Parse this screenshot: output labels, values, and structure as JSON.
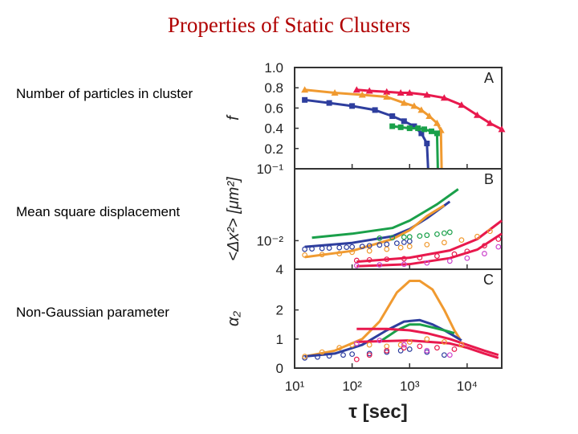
{
  "slide": {
    "title": "Properties of Static Clusters",
    "captions": [
      "Number of particles in cluster",
      "Mean square displacement",
      "Non-Gaussian parameter"
    ]
  },
  "chart_data": [
    {
      "panel": "A",
      "type": "line",
      "ylabel": "f",
      "xscale": "log",
      "xlim": [
        10,
        40000
      ],
      "ylim": [
        0,
        1.0
      ],
      "yticks": [
        "1.0",
        "0.8",
        "0.6",
        "0.4",
        "0.2"
      ],
      "yticks_values": [
        1.0,
        0.8,
        0.6,
        0.4,
        0.2
      ],
      "series": [
        {
          "color": "#e8194d",
          "marker": "triangle",
          "x": [
            120,
            200,
            400,
            700,
            1000,
            2000,
            4000,
            8000,
            15000,
            25000,
            40000
          ],
          "y": [
            0.78,
            0.77,
            0.76,
            0.75,
            0.75,
            0.73,
            0.7,
            0.63,
            0.53,
            0.45,
            0.39
          ]
        },
        {
          "color": "#f09a30",
          "marker": "triangle",
          "x": [
            15,
            50,
            150,
            400,
            800,
            1200,
            1600,
            2200,
            3000,
            3500,
            3600
          ],
          "y": [
            0.78,
            0.75,
            0.73,
            0.71,
            0.65,
            0.62,
            0.58,
            0.52,
            0.45,
            0.38,
            0.0
          ]
        },
        {
          "color": "#2e3e9e",
          "marker": "square",
          "x": [
            15,
            40,
            100,
            250,
            500,
            800,
            1200,
            1600,
            2000,
            2100
          ],
          "y": [
            0.68,
            0.65,
            0.62,
            0.58,
            0.52,
            0.47,
            0.42,
            0.35,
            0.25,
            0.0
          ]
        },
        {
          "color": "#1aa04a",
          "marker": "square",
          "x": [
            500,
            700,
            1000,
            1400,
            1800,
            2400,
            3000,
            3100
          ],
          "y": [
            0.42,
            0.41,
            0.4,
            0.4,
            0.39,
            0.37,
            0.35,
            0.0
          ]
        }
      ]
    },
    {
      "panel": "B",
      "type": "line",
      "ylabel": "<Δx²> [μm²]",
      "xscale": "log",
      "yscale": "log",
      "xlim": [
        10,
        40000
      ],
      "ylim": [
        0.004,
        0.1
      ],
      "yticks": [
        "10⁻¹",
        "10⁻²",
        "4"
      ],
      "yticks_values": [
        0.1,
        0.01,
        0.004
      ],
      "series": [
        {
          "color": "#2e3e9e",
          "style": "line",
          "x": [
            15,
            100,
            500,
            1000,
            2000,
            5000
          ],
          "y": [
            0.0082,
            0.0093,
            0.0115,
            0.0145,
            0.0205,
            0.035
          ]
        },
        {
          "color": "#1aa04a",
          "style": "line",
          "x": [
            20,
            100,
            500,
            1000,
            3000,
            7000
          ],
          "y": [
            0.011,
            0.0125,
            0.015,
            0.019,
            0.032,
            0.052
          ]
        },
        {
          "color": "#f09a30",
          "style": "line",
          "x": [
            15,
            100,
            500,
            1000,
            2000,
            4000
          ],
          "y": [
            0.0059,
            0.0072,
            0.0105,
            0.014,
            0.022,
            0.031
          ]
        },
        {
          "color": "#e8194d",
          "style": "line",
          "x": [
            120,
            1000,
            5000,
            15000,
            40000
          ],
          "y": [
            0.0051,
            0.0058,
            0.0073,
            0.0105,
            0.019
          ]
        },
        {
          "color": "#e8194d",
          "style": "line",
          "x": [
            120,
            1000,
            5000,
            15000,
            40000
          ],
          "y": [
            0.0044,
            0.0047,
            0.0057,
            0.0075,
            0.0125
          ]
        },
        {
          "color": "#2e3e9e",
          "style": "circles",
          "x": [
            15,
            20,
            30,
            40,
            60,
            80,
            100,
            150,
            200,
            300,
            400,
            600,
            800,
            1000
          ],
          "y": [
            0.0076,
            0.0077,
            0.0078,
            0.0079,
            0.008,
            0.0081,
            0.0082,
            0.0083,
            0.0085,
            0.0087,
            0.0089,
            0.0092,
            0.0095,
            0.0098
          ]
        },
        {
          "color": "#1aa04a",
          "style": "circles",
          "x": [
            300,
            500,
            800,
            1000,
            1500,
            2000,
            3000,
            4000,
            5000
          ],
          "y": [
            0.0108,
            0.011,
            0.0112,
            0.0113,
            0.0116,
            0.0119,
            0.0123,
            0.0127,
            0.0131
          ]
        },
        {
          "color": "#f09a30",
          "style": "circles",
          "x": [
            15,
            30,
            60,
            100,
            200,
            400,
            700,
            1000,
            2000,
            4000,
            8000,
            15000,
            25000
          ],
          "y": [
            0.0063,
            0.0064,
            0.0066,
            0.0069,
            0.0072,
            0.0076,
            0.008,
            0.0083,
            0.0088,
            0.0094,
            0.0102,
            0.0114,
            0.0135
          ]
        },
        {
          "color": "#e8194d",
          "style": "circles",
          "x": [
            120,
            200,
            400,
            800,
            1500,
            3000,
            6000,
            10000,
            20000,
            35000
          ],
          "y": [
            0.0053,
            0.0054,
            0.0055,
            0.0056,
            0.0058,
            0.0061,
            0.0065,
            0.0071,
            0.0085,
            0.0105
          ]
        },
        {
          "color": "#cc44cc",
          "style": "circles",
          "x": [
            120,
            300,
            800,
            2000,
            5000,
            10000,
            20000,
            35000
          ],
          "y": [
            0.0045,
            0.0046,
            0.0047,
            0.0049,
            0.0052,
            0.0057,
            0.0066,
            0.0082
          ]
        }
      ]
    },
    {
      "panel": "C",
      "type": "line",
      "ylabel": "α₂",
      "xlabel": "τ [sec]",
      "xscale": "log",
      "xlim": [
        10,
        40000
      ],
      "ylim": [
        0,
        3.4
      ],
      "yticks": [
        "2",
        "1",
        "0"
      ],
      "yticks_values": [
        2,
        1,
        0
      ],
      "xticks": [
        "10¹",
        "10²",
        "10³",
        "10⁴"
      ],
      "xticks_values": [
        10,
        100,
        1000,
        10000
      ],
      "series": [
        {
          "color": "#f09a30",
          "style": "line",
          "x": [
            15,
            50,
            150,
            300,
            600,
            1000,
            1500,
            2500,
            4000,
            6000,
            7500
          ],
          "y": [
            0.4,
            0.6,
            1.0,
            1.6,
            2.6,
            3.0,
            3.0,
            2.7,
            2.0,
            1.3,
            1.0
          ]
        },
        {
          "color": "#2e3e9e",
          "style": "line",
          "x": [
            15,
            50,
            150,
            400,
            800,
            1500,
            2500,
            4000,
            6000,
            8000
          ],
          "y": [
            0.4,
            0.5,
            0.8,
            1.3,
            1.6,
            1.65,
            1.5,
            1.3,
            1.1,
            0.95
          ]
        },
        {
          "color": "#1aa04a",
          "style": "line",
          "x": [
            300,
            600,
            1000,
            1500,
            2500,
            4000,
            6000
          ],
          "y": [
            0.9,
            1.3,
            1.5,
            1.5,
            1.4,
            1.3,
            1.2
          ]
        },
        {
          "color": "#e8194d",
          "style": "line",
          "x": [
            120,
            400,
            1000,
            2000,
            5000,
            10000,
            20000,
            35000
          ],
          "y": [
            1.35,
            1.35,
            1.3,
            1.2,
            1.0,
            0.8,
            0.6,
            0.45
          ]
        },
        {
          "color": "#e8194d",
          "style": "line",
          "x": [
            120,
            1000,
            5000,
            10000,
            20000,
            35000
          ],
          "y": [
            0.9,
            0.95,
            0.85,
            0.7,
            0.5,
            0.35
          ]
        },
        {
          "color": "#2e3e9e",
          "style": "circles",
          "x": [
            15,
            25,
            40,
            70,
            100,
            200,
            400,
            700,
            1000,
            2000,
            4000
          ],
          "y": [
            0.35,
            0.38,
            0.42,
            0.45,
            0.48,
            0.5,
            0.55,
            0.6,
            0.65,
            0.55,
            0.45
          ]
        },
        {
          "color": "#f09a30",
          "style": "circles",
          "x": [
            15,
            30,
            60,
            100,
            200,
            400,
            700,
            1000,
            2000,
            4000,
            8000
          ],
          "y": [
            0.4,
            0.55,
            0.7,
            0.8,
            0.8,
            0.75,
            0.8,
            0.9,
            1.0,
            0.9,
            0.8
          ]
        },
        {
          "color": "#e8194d",
          "style": "circles",
          "x": [
            120,
            200,
            400,
            800,
            1500,
            3000,
            6000
          ],
          "y": [
            0.3,
            0.45,
            0.6,
            0.7,
            0.75,
            0.7,
            0.65
          ]
        },
        {
          "color": "#cc44cc",
          "style": "circles",
          "x": [
            120,
            300,
            800,
            2000,
            5000
          ],
          "y": [
            0.85,
            0.95,
            0.8,
            0.6,
            0.45
          ]
        }
      ]
    }
  ],
  "panel_letters": [
    "A",
    "B",
    "C"
  ],
  "colors": {
    "title": "#b00000",
    "red": "#e8194d",
    "orange": "#f09a30",
    "blue": "#2e3e9e",
    "green": "#1aa04a",
    "magenta": "#cc44cc"
  }
}
